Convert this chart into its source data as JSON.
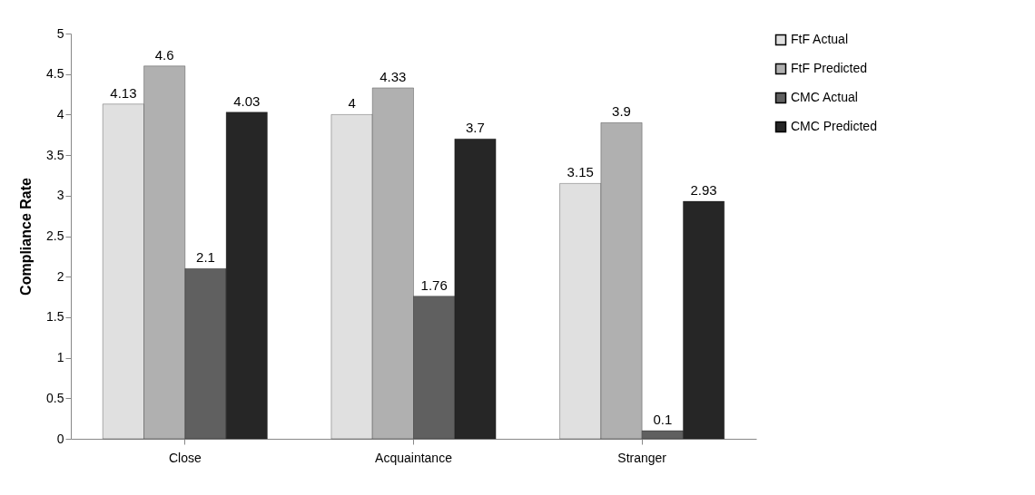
{
  "chart_data": {
    "type": "bar",
    "ylabel": "Compliance Rate",
    "categories": [
      "Close",
      "Acquaintance",
      "Stranger"
    ],
    "series": [
      {
        "name": "FtF Actual",
        "color": "#e0e0e0",
        "values": [
          4.13,
          4,
          3.15
        ]
      },
      {
        "name": "FtF Predicted",
        "color": "#b0b0b0",
        "values": [
          4.6,
          4.33,
          3.9
        ]
      },
      {
        "name": "CMC Actual",
        "color": "#606060",
        "values": [
          2.1,
          1.76,
          0.1
        ]
      },
      {
        "name": "CMC Predicted",
        "color": "#262626",
        "values": [
          4.03,
          3.7,
          2.93
        ]
      }
    ],
    "ylim": [
      0,
      5
    ],
    "yticks": [
      0,
      0.5,
      1,
      1.5,
      2,
      2.5,
      3,
      3.5,
      4,
      4.5,
      5
    ],
    "grid": false,
    "legend": "right",
    "data_labels": true
  }
}
